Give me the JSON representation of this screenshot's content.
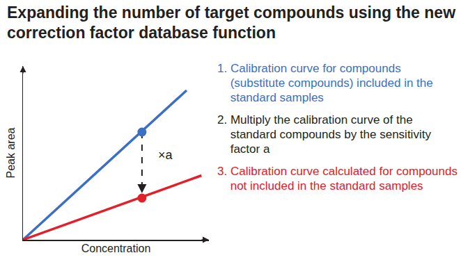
{
  "chart_data": {
    "type": "line",
    "title": "Expanding the number of target compounds using the new correction factor database function",
    "x_label": "Concentration",
    "y_label": "Peak area",
    "xlim": [
      0,
      10
    ],
    "ylim": [
      0,
      10
    ],
    "grid": false,
    "tick_labels": false,
    "series": [
      {
        "color": "#3a6fc4",
        "line_style": "solid",
        "x": [
          0,
          8.8
        ],
        "values": [
          0,
          8.6
        ]
      },
      {
        "color": "#e0202a",
        "line_style": "solid",
        "x": [
          0,
          9.6
        ],
        "values": [
          0,
          3.7
        ]
      },
      {
        "color": "#3a6fc4",
        "marker": "circle",
        "x": [
          6.4
        ],
        "values": [
          6.2
        ]
      },
      {
        "color": "#e0202a",
        "marker": "circle",
        "x": [
          6.4
        ],
        "values": [
          2.4
        ]
      }
    ],
    "annotations": [
      {
        "text": "×a"
      },
      {
        "text": "1. Calibration curve for compounds (substitute compounds) included in the standard samples",
        "color": "#3a6fc4"
      },
      {
        "text": "2. Multiply the calibration curve of the standard compounds by the sensitivity factor a",
        "color": "#231f20"
      },
      {
        "text": "3. Calibration curve calculated for compounds not included in the standard samples",
        "color": "#e0202a"
      }
    ]
  }
}
